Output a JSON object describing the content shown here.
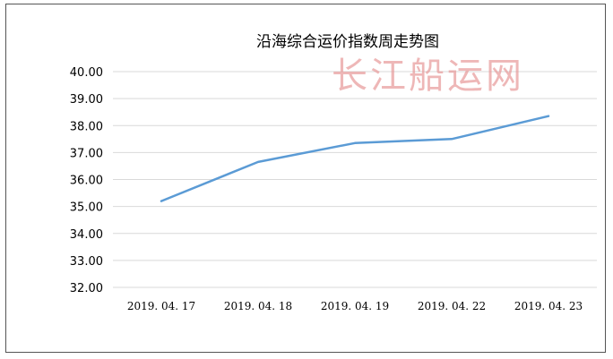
{
  "watermark": "长江船运网",
  "chart_data": {
    "type": "line",
    "title": "沿海综合运价指数周走势图",
    "xlabel": "",
    "ylabel": "",
    "categories": [
      "2019. 04. 17",
      "2019. 04. 18",
      "2019. 04. 19",
      "2019. 04. 22",
      "2019. 04. 23"
    ],
    "series": [
      {
        "values": [
          35.2,
          36.65,
          37.35,
          37.5,
          38.35
        ],
        "color": "#5b9bd5"
      }
    ],
    "y_ticks": [
      "32.00",
      "33.00",
      "34.00",
      "35.00",
      "36.00",
      "37.00",
      "38.00",
      "39.00",
      "40.00"
    ],
    "ylim": [
      32,
      40
    ],
    "grid": true,
    "legend": "none",
    "grid_color": "#d9d9d9",
    "axis_text_color": "#000000"
  }
}
